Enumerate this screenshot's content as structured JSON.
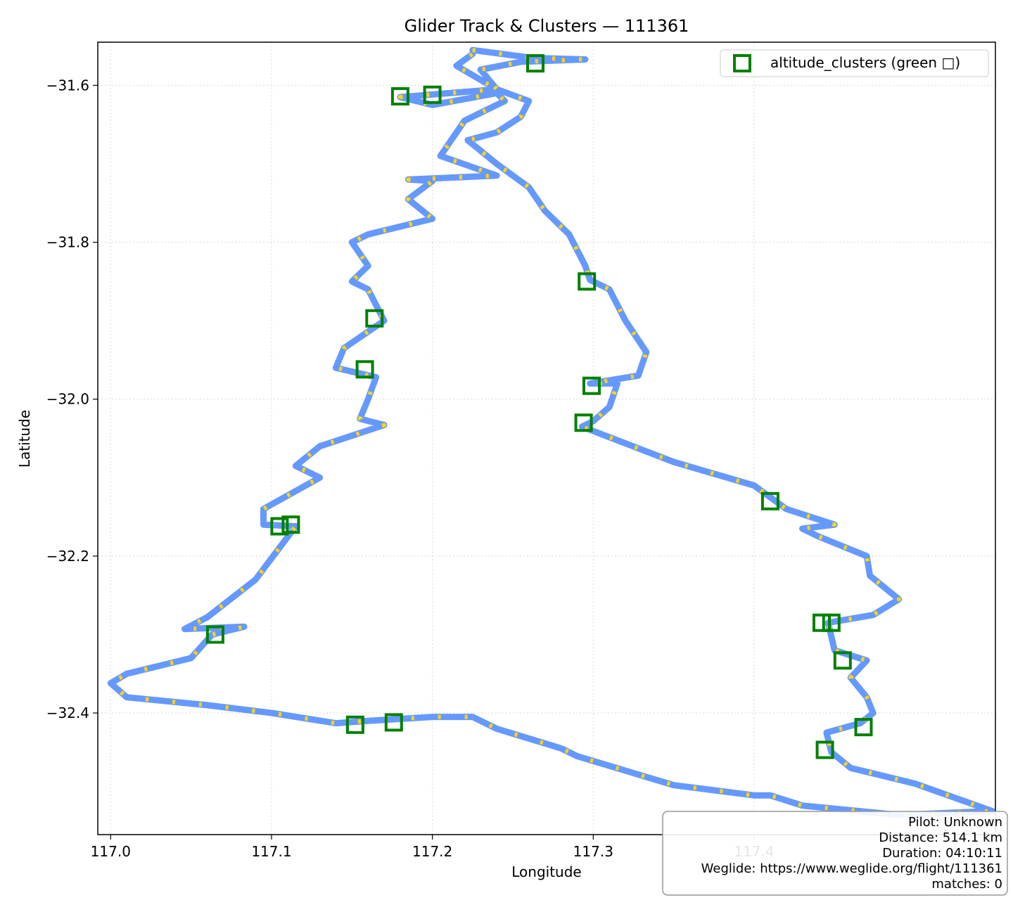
{
  "chart_data": {
    "type": "line",
    "title": "Glider Track & Clusters — 111361",
    "xlabel": "Longitude",
    "ylabel": "Latitude",
    "xlim": [
      116.992,
      117.55
    ],
    "ylim": [
      -32.555,
      -31.545
    ],
    "xticks": [
      117.0,
      117.1,
      117.2,
      117.3,
      117.4
    ],
    "xtick_labels": [
      "117.0",
      "117.1",
      "117.2",
      "117.3",
      "117.4"
    ],
    "yticks": [
      -31.6,
      -31.8,
      -32.0,
      -32.2,
      -32.4
    ],
    "ytick_labels": [
      "−31.6",
      "−31.8",
      "−32.0",
      "−32.2",
      "−32.4"
    ],
    "grid": true,
    "legend_position": "top-right",
    "colors": {
      "track": "#6699ff",
      "track_highlight": "#ffd700",
      "cluster": "#008000"
    },
    "track": {
      "lon": [
        117.225,
        117.262,
        117.295,
        117.255,
        117.23,
        117.24,
        117.26,
        117.255,
        117.24,
        117.222,
        117.24,
        117.26,
        117.27,
        117.285,
        117.295,
        117.298,
        117.3,
        117.31,
        117.32,
        117.333,
        117.328,
        117.298,
        117.315,
        117.31,
        117.3,
        117.293,
        117.35,
        117.4,
        117.42,
        117.45,
        117.43,
        117.44,
        117.47,
        117.472,
        117.49,
        117.474,
        117.446,
        117.45,
        117.47,
        117.46,
        117.47,
        117.474,
        117.466,
        117.445,
        117.448,
        117.46,
        117.5,
        117.548,
        117.49,
        117.43,
        117.41,
        117.4,
        117.35,
        117.29,
        117.28,
        117.24,
        117.225,
        117.2,
        117.16,
        117.14,
        117.1,
        117.06,
        117.01,
        117.0,
        117.01,
        117.05,
        117.063,
        117.083,
        117.046,
        117.06,
        117.09,
        117.115,
        117.095,
        117.095,
        117.13,
        117.115,
        117.13,
        117.17,
        117.155,
        117.16,
        117.165,
        117.14,
        117.145,
        117.17,
        117.16,
        117.15,
        117.16,
        117.15,
        117.16,
        117.2,
        117.185,
        117.2,
        117.185,
        117.24,
        117.205,
        117.22,
        117.245,
        117.24,
        117.2,
        117.18,
        117.24,
        117.215,
        117.225
      ],
      "lat": [
        -31.555,
        -31.565,
        -31.567,
        -31.57,
        -31.58,
        -31.605,
        -31.62,
        -31.64,
        -31.66,
        -31.67,
        -31.7,
        -31.73,
        -31.76,
        -31.79,
        -31.83,
        -31.848,
        -31.85,
        -31.86,
        -31.9,
        -31.94,
        -31.97,
        -31.98,
        -31.98,
        -32.01,
        -32.028,
        -32.035,
        -32.08,
        -32.11,
        -32.14,
        -32.16,
        -32.165,
        -32.175,
        -32.2,
        -32.225,
        -32.255,
        -32.275,
        -32.285,
        -32.32,
        -32.333,
        -32.355,
        -32.38,
        -32.4,
        -32.413,
        -32.425,
        -32.45,
        -32.47,
        -32.49,
        -32.525,
        -32.53,
        -32.518,
        -32.505,
        -32.505,
        -32.492,
        -32.455,
        -32.445,
        -32.42,
        -32.405,
        -32.405,
        -32.41,
        -32.413,
        -32.4,
        -32.39,
        -32.38,
        -32.362,
        -32.35,
        -32.33,
        -32.3,
        -32.29,
        -32.293,
        -32.278,
        -32.23,
        -32.162,
        -32.16,
        -32.14,
        -32.1,
        -32.085,
        -32.06,
        -32.033,
        -32.025,
        -32.0,
        -31.972,
        -31.96,
        -31.935,
        -31.9,
        -31.86,
        -31.85,
        -31.83,
        -31.8,
        -31.79,
        -31.77,
        -31.745,
        -31.722,
        -31.72,
        -31.715,
        -31.69,
        -31.645,
        -31.62,
        -31.61,
        -31.625,
        -31.615,
        -31.605,
        -31.575,
        -31.56
      ]
    },
    "altitude_clusters": {
      "name": "altitude_clusters (green □)",
      "lon": [
        117.264,
        117.18,
        117.2,
        117.296,
        117.164,
        117.158,
        117.299,
        117.294,
        117.41,
        117.105,
        117.112,
        117.065,
        117.442,
        117.448,
        117.455,
        117.468,
        117.444,
        117.152,
        117.176
      ],
      "lat": [
        -31.572,
        -31.614,
        -31.612,
        -31.85,
        -31.897,
        -31.962,
        -31.983,
        -32.03,
        -32.13,
        -32.162,
        -32.16,
        -32.3,
        -32.285,
        -32.285,
        -32.333,
        -32.418,
        -32.447,
        -32.415,
        -32.412
      ]
    },
    "info_box": {
      "pilot": "Pilot: Unknown",
      "distance": "Distance: 514.1 km",
      "duration": "Duration: 04:10:11",
      "weglide": "Weglide: https://www.weglide.org/flight/111361",
      "matches": "matches: 0"
    }
  }
}
